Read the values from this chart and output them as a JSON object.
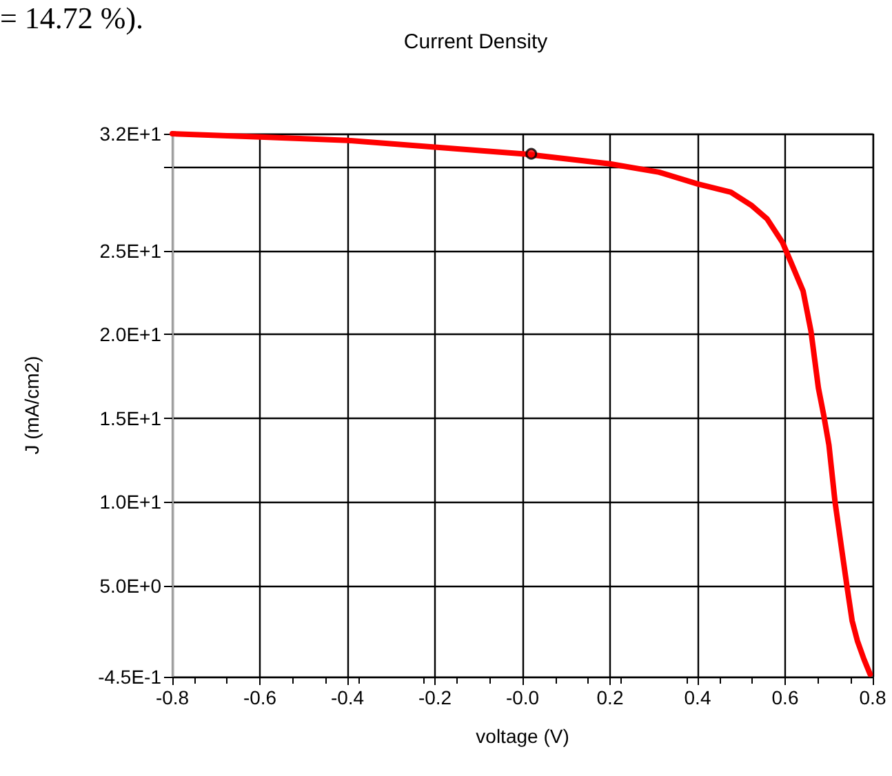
{
  "chart_data": {
    "type": "line",
    "title": "Current Density",
    "xlabel": "voltage (V)",
    "ylabel": "J (mA/cm2)",
    "annotations": [
      "= 14.72 %)."
    ],
    "series": [
      {
        "color": "#ff0000",
        "x": [
          -0.8,
          -0.6,
          -0.4,
          -0.2,
          0.0,
          0.2,
          0.312,
          0.4,
          0.476,
          0.524,
          0.559,
          0.594,
          0.612,
          0.641,
          0.659,
          0.676,
          0.688,
          0.7,
          0.714,
          0.729,
          0.741,
          0.753,
          0.765,
          0.78,
          0.794
        ],
        "values": [
          32.0,
          31.8,
          31.6,
          31.2,
          30.8,
          30.2,
          29.7,
          29.0,
          28.5,
          27.7,
          26.9,
          25.5,
          24.4,
          22.6,
          20.2,
          16.8,
          15.2,
          13.4,
          10.0,
          7.2,
          5.0,
          2.9,
          1.7,
          0.6,
          -0.3
        ]
      },
      {
        "type": "scatter",
        "color": "#000000",
        "marker": "circle",
        "x": [
          0.02
        ],
        "values": [
          30.8
        ]
      }
    ],
    "xlim": [
      -0.8,
      0.8
    ],
    "xticks": [
      -0.8,
      -0.6,
      -0.4,
      -0.2,
      {
        "value": 0,
        "label": "-0.0"
      },
      0.2,
      0.4,
      0.6,
      0.8
    ],
    "ylim": [
      -0.45,
      32
    ],
    "yticks": [
      {
        "value": -0.45,
        "label": "-4.5E-1"
      },
      {
        "value": 5,
        "label": "5.0E+0"
      },
      {
        "value": 10,
        "label": "1.0E+1"
      },
      {
        "value": 15,
        "label": "1.5E+1"
      },
      {
        "value": 20,
        "label": "2.0E+1"
      },
      {
        "value": 25,
        "label": "2.5E+1"
      },
      {
        "value": 30,
        "label": null
      },
      {
        "value": 32,
        "label": "3.2E+1"
      }
    ],
    "grid": true,
    "marker": "none",
    "line_style": "solid"
  }
}
